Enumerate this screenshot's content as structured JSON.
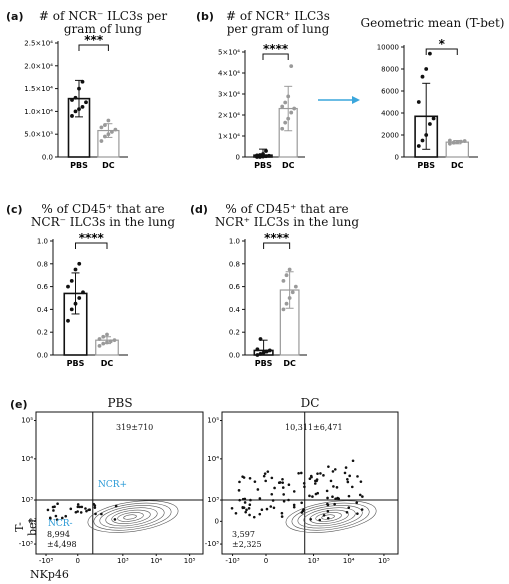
{
  "panel_e": {
    "label": "(e)",
    "xlabel": "NKp46",
    "ylabel": "T-bet",
    "plots": [
      {
        "title": "PBS",
        "upper_right": "319±710",
        "gate_label_pos": "NCR+",
        "gate_label_neg": "NCR-",
        "lower_left": [
          "8,994",
          "±4,498"
        ]
      },
      {
        "title": "DC",
        "upper_right": "10,311±6,471",
        "lower_left": [
          "3,597",
          "±2,325"
        ]
      }
    ],
    "x_ticks": [
      "-10³",
      "0",
      "10³",
      "10⁴",
      "10⁵"
    ],
    "y_ticks": [
      "10⁵",
      "10⁴",
      "10³",
      "0",
      "-10³"
    ]
  },
  "colors": {
    "pbs": "#111111",
    "dc": "#9a9a9a",
    "arrow": "#3aa6dc",
    "label_blue": "#2a9ad6"
  },
  "chart_data": [
    {
      "type": "bar",
      "panel": "(a)",
      "title": "# of NCR⁻ ILC3s per gram of lung",
      "categories": [
        "PBS",
        "DC"
      ],
      "values": [
        12800,
        5800
      ],
      "errors": [
        4000,
        1500
      ],
      "points": [
        [
          9000,
          10000,
          10500,
          11000,
          12000,
          12500,
          13000,
          15000,
          16500
        ],
        [
          3500,
          4500,
          5000,
          5500,
          6000,
          6500,
          7000,
          8000
        ]
      ],
      "yticks": [
        "0.0",
        "5.0×10³",
        "1.0×10⁴",
        "1.5×10⁴",
        "2.0×10⁴",
        "2.5×10⁴"
      ],
      "ylim": [
        0,
        25000
      ],
      "significance": "***"
    },
    {
      "type": "bar",
      "panel": "(b)",
      "title": "# of NCR⁺ ILC3s per gram of lung",
      "categories": [
        "PBS",
        "DC"
      ],
      "values": [
        900,
        24000
      ],
      "errors": [
        3000,
        11000
      ],
      "points": [
        [
          0,
          0,
          200,
          400,
          600,
          800,
          1000,
          1500,
          3000
        ],
        [
          14000,
          17000,
          19000,
          22000,
          24000,
          25000,
          27000,
          30000,
          45000
        ]
      ],
      "yticks": [
        "0",
        "1×10⁴",
        "2×10⁴",
        "3×10⁴",
        "4×10⁴",
        "5×10⁴"
      ],
      "ylim": [
        0,
        52000
      ],
      "significance": "****"
    },
    {
      "type": "bar",
      "panel": "(b)",
      "title": "Geometric mean (T-bet)",
      "categories": [
        "PBS",
        "DC"
      ],
      "values": [
        3700,
        1350
      ],
      "errors": [
        3000,
        150
      ],
      "points": [
        [
          1000,
          1500,
          2000,
          3000,
          3500,
          5000,
          7300,
          8000,
          9400
        ],
        [
          1200,
          1300,
          1350,
          1400,
          1450,
          1500
        ]
      ],
      "yticks": [
        "0",
        "2000",
        "4000",
        "6000",
        "8000",
        "10000"
      ],
      "ylim": [
        0,
        10000
      ],
      "significance": "*"
    },
    {
      "type": "bar",
      "panel": "(c)",
      "title": "% of CD45⁺ that are NCR⁻ ILC3s in the lung",
      "categories": [
        "PBS",
        "DC"
      ],
      "values": [
        0.54,
        0.13
      ],
      "errors": [
        0.18,
        0.03
      ],
      "points": [
        [
          0.3,
          0.4,
          0.45,
          0.5,
          0.55,
          0.6,
          0.65,
          0.75,
          0.8
        ],
        [
          0.08,
          0.1,
          0.11,
          0.12,
          0.13,
          0.14,
          0.16,
          0.18
        ]
      ],
      "yticks": [
        "0.0",
        "0.2",
        "0.4",
        "0.6",
        "0.8",
        "1.0"
      ],
      "ylim": [
        0,
        1.0
      ],
      "significance": "****"
    },
    {
      "type": "bar",
      "panel": "(d)",
      "title": "% of CD45⁺ that are NCR⁺ ILC3s in the lung",
      "categories": [
        "PBS",
        "DC"
      ],
      "values": [
        0.04,
        0.57
      ],
      "errors": [
        0.09,
        0.16
      ],
      "points": [
        [
          0.0,
          0.01,
          0.02,
          0.03,
          0.04,
          0.05,
          0.14
        ],
        [
          0.4,
          0.45,
          0.5,
          0.55,
          0.6,
          0.65,
          0.7,
          0.75
        ]
      ],
      "yticks": [
        "0.0",
        "0.2",
        "0.4",
        "0.6",
        "0.8",
        "1.0"
      ],
      "ylim": [
        0,
        1.0
      ],
      "significance": "****"
    }
  ]
}
